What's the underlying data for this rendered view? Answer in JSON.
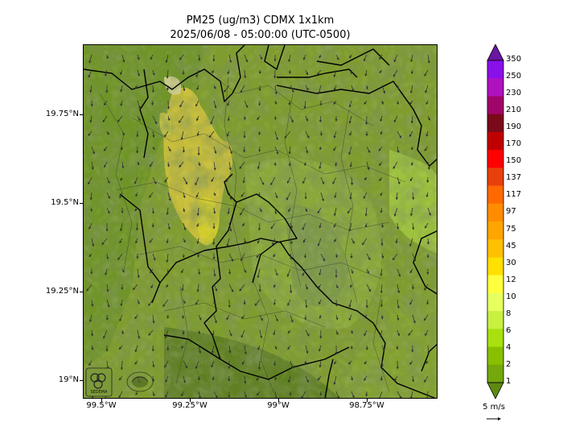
{
  "header": {
    "title": "PM25 (ug/m3) CDMX 1x1km",
    "subtitle": "2025/06/08 - 05:00:00 (UTC-0500)"
  },
  "map": {
    "lat_ticks": [
      "19.75°N",
      "19.5°N",
      "19.25°N",
      "19°N"
    ],
    "lon_ticks": [
      "99.5°W",
      "99.25°W",
      "99°W",
      "98.75°W"
    ],
    "dominant_colors": {
      "dark_green": "#5b7e22",
      "mid_green": "#8aa83a",
      "light_green": "#9cc13c",
      "yellow": "#d4c837",
      "terrain_dark": "#4a5e28"
    },
    "logos": [
      "sedema-logo",
      "cdmx-seal-logo"
    ]
  },
  "colorbar": {
    "labels": [
      "350",
      "250",
      "230",
      "210",
      "190",
      "170",
      "150",
      "137",
      "117",
      "97",
      "75",
      "45",
      "30",
      "12",
      "10",
      "8",
      "6",
      "4",
      "2",
      "1"
    ],
    "colors": [
      "#6a16a2",
      "#8a10ea",
      "#b011bf",
      "#a0056b",
      "#7a0a1a",
      "#c00000",
      "#ff0000",
      "#e8400c",
      "#ff6a00",
      "#ff8c00",
      "#ffa500",
      "#ffc000",
      "#ffe000",
      "#ffff40",
      "#e8ff60",
      "#c8f040",
      "#a8e010",
      "#88c000",
      "#74a80c",
      "#5f8a10"
    ]
  },
  "wind": {
    "reference_label": "5 m/s"
  }
}
